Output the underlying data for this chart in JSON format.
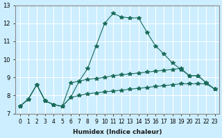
{
  "xlabel": "Humidex (Indice chaleur)",
  "ylabel": "",
  "background_color": "#cceeff",
  "grid_color": "#ffffff",
  "line_color": "#1a6b5a",
  "xlim": [
    0,
    23
  ],
  "ylim": [
    7,
    13
  ],
  "yticks": [
    7,
    8,
    9,
    10,
    11,
    12,
    13
  ],
  "xticks": [
    0,
    1,
    2,
    3,
    4,
    5,
    6,
    7,
    8,
    9,
    10,
    11,
    12,
    13,
    14,
    15,
    16,
    17,
    18,
    19,
    20,
    21,
    22,
    23
  ],
  "line1_x": [
    0,
    1,
    2,
    3,
    4,
    5,
    6,
    7,
    8,
    9,
    10,
    11,
    12,
    13,
    14,
    15,
    16,
    17,
    18,
    19,
    20,
    21,
    22,
    23
  ],
  "line1_y": [
    7.4,
    7.8,
    8.6,
    7.7,
    7.5,
    7.4,
    7.9,
    8.8,
    9.5,
    10.75,
    12.0,
    12.55,
    12.35,
    12.3,
    12.3,
    11.5,
    10.75,
    10.3,
    9.8,
    9.45,
    9.1,
    9.1,
    8.7,
    8.35
  ],
  "line2_x": [
    0,
    1,
    2,
    3,
    4,
    5,
    6,
    7,
    8,
    9,
    10,
    11,
    12,
    13,
    14,
    15,
    16,
    17,
    18,
    19,
    20,
    21,
    22,
    23
  ],
  "line2_y": [
    7.4,
    7.8,
    8.6,
    7.7,
    7.5,
    7.4,
    8.7,
    8.8,
    8.9,
    8.95,
    9.0,
    9.1,
    9.15,
    9.2,
    9.25,
    9.3,
    9.35,
    9.4,
    9.45,
    9.5,
    9.1,
    9.1,
    8.7,
    8.35
  ],
  "line3_x": [
    0,
    1,
    2,
    3,
    4,
    5,
    6,
    7,
    8,
    9,
    10,
    11,
    12,
    13,
    14,
    15,
    16,
    17,
    18,
    19,
    20,
    21,
    22,
    23
  ],
  "line3_y": [
    7.4,
    7.8,
    8.6,
    7.7,
    7.5,
    7.4,
    7.9,
    8.0,
    8.1,
    8.15,
    8.2,
    8.25,
    8.3,
    8.35,
    8.4,
    8.45,
    8.5,
    8.55,
    8.6,
    8.65,
    8.65,
    8.65,
    8.65,
    8.35
  ]
}
